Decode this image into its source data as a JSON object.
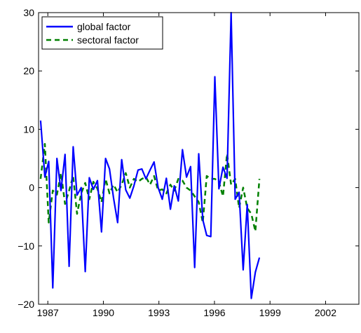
{
  "chart_data": {
    "type": "line",
    "xlim": [
      1986.5,
      2003.8
    ],
    "ylim": [
      -20,
      30
    ],
    "xticks": [
      1987,
      1990,
      1993,
      1996,
      1999,
      2002
    ],
    "yticks": [
      -20,
      -10,
      0,
      10,
      20,
      30
    ],
    "xtick_labels": [
      "1987",
      "1990",
      "1993",
      "1996",
      "1999",
      "2002"
    ],
    "ytick_labels": [
      "−20",
      "−10",
      "0",
      "10",
      "20",
      "30"
    ],
    "legend_position": "top-left",
    "grid": false,
    "series": [
      {
        "name": "global factor",
        "color": "#0000ff",
        "line_style": "solid",
        "points": [
          [
            1986.61,
            11.5
          ],
          [
            1986.84,
            1.8
          ],
          [
            1987.05,
            4.5
          ],
          [
            1987.27,
            -17.2
          ],
          [
            1987.49,
            5.0
          ],
          [
            1987.71,
            -0.5
          ],
          [
            1987.93,
            5.7
          ],
          [
            1988.15,
            -13.5
          ],
          [
            1988.37,
            7.0
          ],
          [
            1988.58,
            -1.3
          ],
          [
            1988.8,
            0.0
          ],
          [
            1989.02,
            -14.4
          ],
          [
            1989.24,
            1.7
          ],
          [
            1989.46,
            -0.3
          ],
          [
            1989.68,
            1.2
          ],
          [
            1989.9,
            -7.6
          ],
          [
            1990.12,
            5.0
          ],
          [
            1990.33,
            3.2
          ],
          [
            1990.55,
            -1.8
          ],
          [
            1990.77,
            -6.0
          ],
          [
            1990.99,
            4.8
          ],
          [
            1991.21,
            -0.4
          ],
          [
            1991.43,
            -1.8
          ],
          [
            1991.65,
            0.3
          ],
          [
            1991.87,
            3.0
          ],
          [
            1992.08,
            3.2
          ],
          [
            1992.3,
            1.5
          ],
          [
            1992.52,
            3.0
          ],
          [
            1992.74,
            4.4
          ],
          [
            1992.96,
            0.0
          ],
          [
            1993.18,
            -2.0
          ],
          [
            1993.4,
            1.6
          ],
          [
            1993.62,
            -3.7
          ],
          [
            1993.83,
            0.3
          ],
          [
            1994.05,
            -2.3
          ],
          [
            1994.27,
            6.5
          ],
          [
            1994.49,
            1.8
          ],
          [
            1994.71,
            3.6
          ],
          [
            1994.93,
            -13.7
          ],
          [
            1995.15,
            5.8
          ],
          [
            1995.37,
            -5.5
          ],
          [
            1995.58,
            -8.2
          ],
          [
            1995.8,
            -8.4
          ],
          [
            1996.02,
            19.0
          ],
          [
            1996.24,
            -0.2
          ],
          [
            1996.46,
            3.5
          ],
          [
            1996.68,
            1.6
          ],
          [
            1996.9,
            30.0
          ],
          [
            1997.12,
            -2.0
          ],
          [
            1997.33,
            -0.8
          ],
          [
            1997.55,
            -14.1
          ],
          [
            1997.77,
            -2.9
          ],
          [
            1997.99,
            -19.0
          ],
          [
            1998.21,
            -14.5
          ],
          [
            1998.43,
            -12.0
          ]
        ]
      },
      {
        "name": "sectoral factor",
        "color": "#008000",
        "line_style": "dashed",
        "points": [
          [
            1986.61,
            1.5
          ],
          [
            1986.84,
            7.5
          ],
          [
            1987.05,
            -6.0
          ],
          [
            1987.27,
            -0.5
          ],
          [
            1987.49,
            -1.2
          ],
          [
            1987.71,
            2.5
          ],
          [
            1987.93,
            -2.8
          ],
          [
            1988.15,
            -0.5
          ],
          [
            1988.37,
            2.0
          ],
          [
            1988.58,
            -4.5
          ],
          [
            1988.8,
            -1.0
          ],
          [
            1989.02,
            0.8
          ],
          [
            1989.24,
            -2.0
          ],
          [
            1989.46,
            1.0
          ],
          [
            1989.68,
            -0.2
          ],
          [
            1989.9,
            -2.5
          ],
          [
            1990.12,
            1.5
          ],
          [
            1990.33,
            -1.0
          ],
          [
            1990.55,
            0.5
          ],
          [
            1990.77,
            -0.8
          ],
          [
            1990.99,
            0.5
          ],
          [
            1991.21,
            2.5
          ],
          [
            1991.43,
            0.0
          ],
          [
            1991.65,
            1.5
          ],
          [
            1991.87,
            1.0
          ],
          [
            1992.08,
            1.5
          ],
          [
            1992.3,
            1.8
          ],
          [
            1992.52,
            0.5
          ],
          [
            1992.74,
            2.0
          ],
          [
            1992.96,
            -0.5
          ],
          [
            1993.18,
            -0.3
          ],
          [
            1993.4,
            -1.0
          ],
          [
            1993.62,
            0.5
          ],
          [
            1993.83,
            -0.5
          ],
          [
            1994.05,
            1.5
          ],
          [
            1994.27,
            1.2
          ],
          [
            1994.49,
            0.0
          ],
          [
            1994.71,
            -0.5
          ],
          [
            1994.93,
            -1.5
          ],
          [
            1995.15,
            -2.5
          ],
          [
            1995.37,
            -6.0
          ],
          [
            1995.58,
            2.0
          ],
          [
            1995.8,
            1.5
          ],
          [
            1996.02,
            1.5
          ],
          [
            1996.24,
            1.0
          ],
          [
            1996.46,
            -1.5
          ],
          [
            1996.68,
            5.8
          ],
          [
            1996.9,
            0.5
          ],
          [
            1997.12,
            1.5
          ],
          [
            1997.33,
            -3.5
          ],
          [
            1997.55,
            0.0
          ],
          [
            1997.77,
            -3.5
          ],
          [
            1997.99,
            -4.5
          ],
          [
            1998.21,
            -7.5
          ],
          [
            1998.43,
            1.5
          ]
        ]
      }
    ]
  }
}
